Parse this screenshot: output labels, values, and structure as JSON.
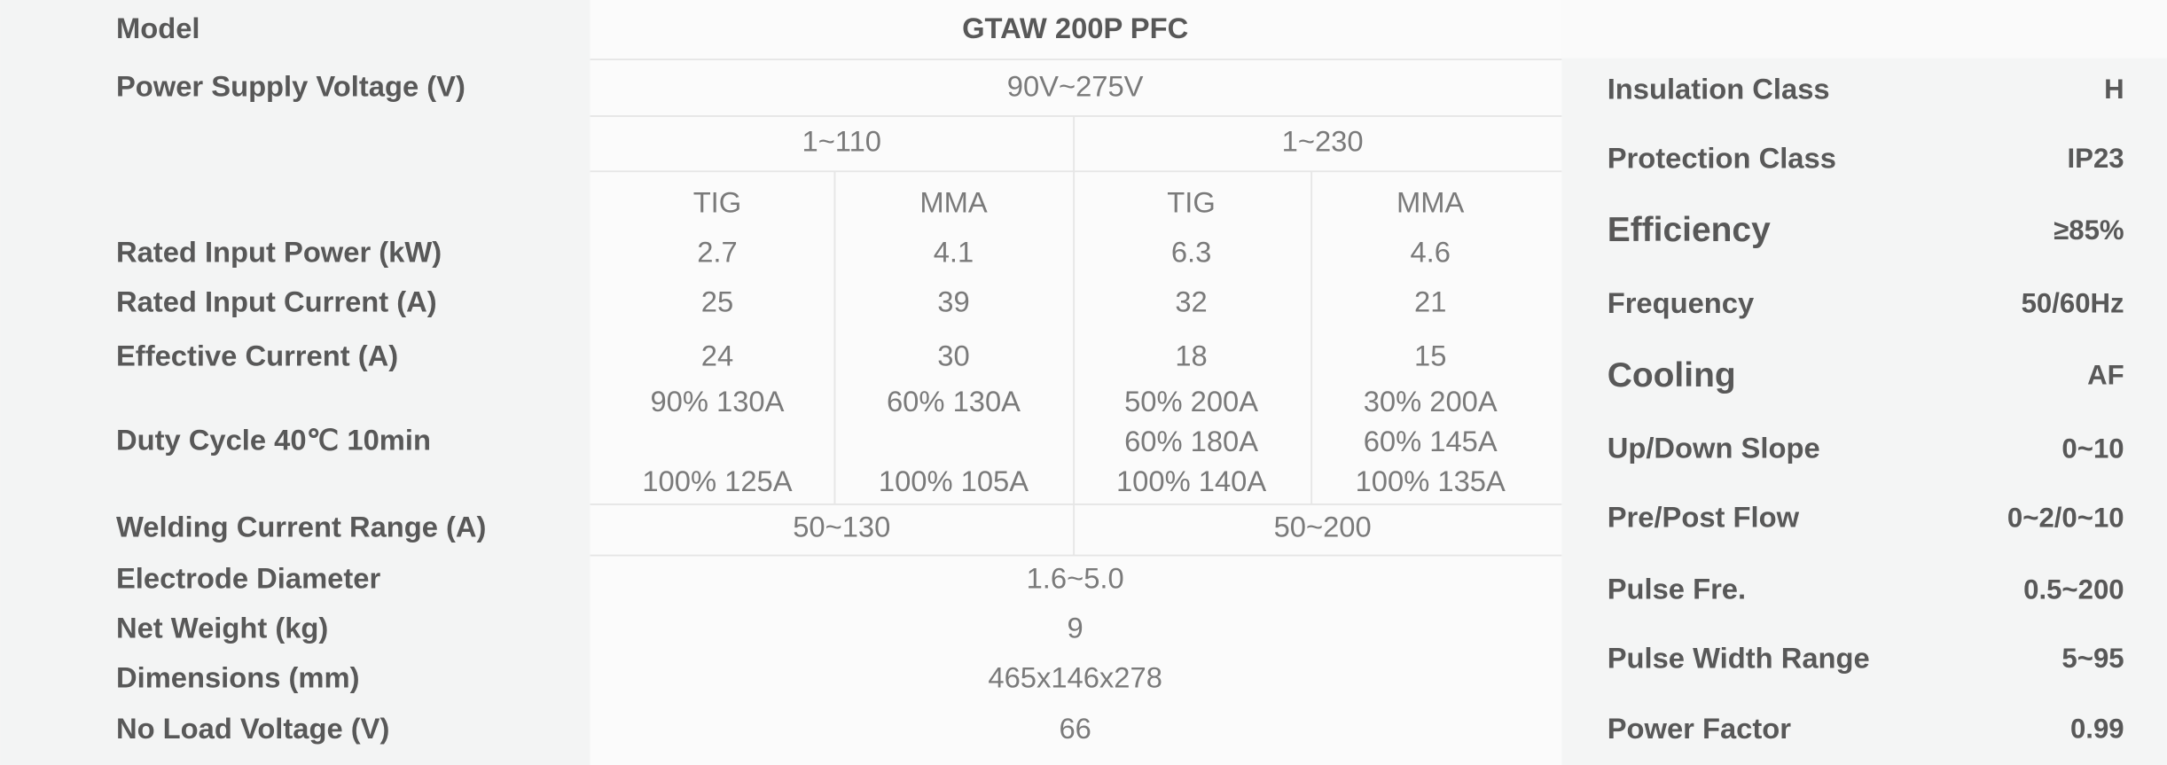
{
  "table": {
    "model": {
      "label": "Model",
      "value": "GTAW 200P PFC"
    },
    "supply_voltage": {
      "label": "Power Supply Voltage (V)",
      "value": "90V~275V"
    },
    "phases": [
      "1~110",
      "1~230"
    ],
    "modes": [
      "TIG",
      "MMA",
      "TIG",
      "MMA"
    ],
    "rows": [
      {
        "label": "Rated Input Power (kW)",
        "values": [
          "2.7",
          "4.1",
          "6.3",
          "4.6"
        ]
      },
      {
        "label": "Rated Input Current (A)",
        "values": [
          "25",
          "39",
          "32",
          "21"
        ]
      },
      {
        "label": "Effective Current (A)",
        "values": [
          "24",
          "30",
          "18",
          "15"
        ]
      }
    ],
    "duty_cycle": {
      "label": "Duty Cycle 40℃ 10min",
      "values": [
        [
          "90% 130A",
          "100% 125A"
        ],
        [
          "60% 130A",
          "100% 105A"
        ],
        [
          "50% 200A",
          "60% 180A",
          "100% 140A"
        ],
        [
          "30% 200A",
          "60% 145A",
          "100% 135A"
        ]
      ]
    },
    "current_range": {
      "label": "Welding Current Range (A)",
      "values": [
        "50~130",
        "50~200"
      ]
    },
    "bottom_rows": [
      {
        "label": "Electrode Diameter",
        "value": "1.6~5.0"
      },
      {
        "label": "Net Weight (kg)",
        "value": "9"
      },
      {
        "label": "Dimensions (mm)",
        "value": "465x146x278"
      },
      {
        "label": "No Load Voltage (V)",
        "value": "66"
      }
    ]
  },
  "side_table": {
    "rows": [
      {
        "label": "Insulation Class",
        "value": "H"
      },
      {
        "label": "Protection Class",
        "value": "IP23"
      },
      {
        "label": "Efficiency",
        "value": "≥85%"
      },
      {
        "label": "Frequency",
        "value": "50/60Hz"
      },
      {
        "label": "Cooling",
        "value": "AF"
      },
      {
        "label": "Up/Down Slope",
        "value": "0~10"
      },
      {
        "label": "Pre/Post Flow",
        "value": "0~2/0~10"
      },
      {
        "label": "Pulse Fre.",
        "value": "0.5~200"
      },
      {
        "label": "Pulse Width Range",
        "value": "5~95"
      },
      {
        "label": "Power Factor",
        "value": "0.99"
      }
    ]
  }
}
